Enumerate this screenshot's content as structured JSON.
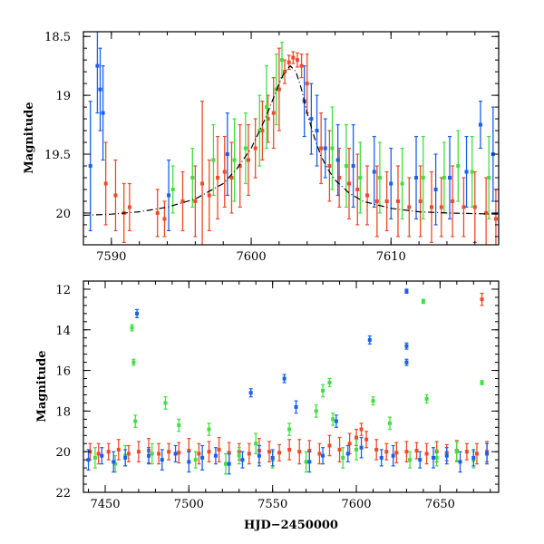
{
  "chart_data": [
    {
      "type": "scatter",
      "panel": "top",
      "xlabel": "",
      "ylabel": "Magnitude",
      "xlim": [
        7588.0,
        7617.7
      ],
      "ylim": [
        20.27,
        18.46
      ],
      "y_inverted": true,
      "xticks": [
        7590,
        7600,
        7610
      ],
      "yticks": [
        18.5,
        19,
        19.5,
        20
      ],
      "colors": {
        "red": "#f04a2a",
        "green": "#40e040",
        "blue": "#1a5ff0",
        "model": "#000000"
      },
      "series": [
        {
          "color": "red",
          "x": [
            7589.6,
            7590.3,
            7590.9,
            7591.3,
            7593.3,
            7593.8,
            7595.1,
            7596.0,
            7596.5,
            7597.0,
            7597.6,
            7598.1,
            7598.6,
            7599.2,
            7599.8,
            7600.3,
            7600.8,
            7601.2,
            7601.6,
            7602.0,
            7602.4,
            7602.7,
            7603.0,
            7603.3,
            7603.6,
            7604.0,
            7605.0,
            7605.6,
            7606.3,
            7607.0,
            7607.6,
            7608.3,
            7609.0,
            7609.7,
            7610.5,
            7611.3,
            7612.1,
            7612.9,
            7613.6,
            7614.4,
            7615.2,
            7616.0,
            7616.8,
            7617.5
          ],
          "y": [
            19.75,
            19.85,
            20.0,
            19.95,
            20.0,
            20.05,
            19.9,
            19.9,
            19.75,
            19.85,
            19.7,
            19.65,
            19.7,
            19.6,
            19.55,
            19.45,
            19.3,
            19.2,
            19.15,
            18.95,
            18.8,
            18.72,
            18.68,
            18.7,
            18.75,
            18.9,
            19.45,
            19.6,
            19.7,
            19.75,
            19.8,
            19.85,
            19.9,
            19.9,
            19.9,
            19.95,
            19.9,
            19.95,
            19.95,
            19.9,
            19.95,
            19.95,
            20.0,
            20.05
          ],
          "yerr": [
            0.35,
            0.3,
            0.25,
            0.2,
            0.2,
            0.15,
            0.25,
            0.3,
            0.7,
            0.3,
            0.35,
            0.3,
            0.3,
            0.35,
            0.3,
            0.25,
            0.25,
            0.2,
            0.3,
            0.35,
            0.1,
            0.06,
            0.05,
            0.06,
            0.1,
            0.25,
            0.3,
            0.3,
            0.25,
            0.3,
            0.3,
            0.25,
            0.3,
            0.25,
            0.3,
            0.25,
            0.3,
            0.3,
            0.25,
            0.3,
            0.25,
            0.3,
            0.3,
            0.25
          ]
        },
        {
          "color": "green",
          "x": [
            7594.4,
            7595.8,
            7597.3,
            7598.8,
            7599.6,
            7600.6,
            7601.1,
            7601.8,
            7602.2,
            7605.8,
            7606.8,
            7607.8,
            7609.2,
            7610.8,
            7612.3,
            7613.8,
            7614.8,
            7615.8,
            7617.0
          ],
          "y": [
            19.8,
            19.7,
            19.55,
            19.55,
            19.45,
            19.3,
            19.1,
            18.95,
            18.7,
            19.45,
            19.6,
            19.7,
            19.7,
            19.75,
            19.7,
            19.7,
            19.6,
            19.65,
            19.7
          ],
          "yerr": [
            0.2,
            0.25,
            0.3,
            0.35,
            0.3,
            0.3,
            0.35,
            0.3,
            0.15,
            0.35,
            0.35,
            0.3,
            0.3,
            0.3,
            0.35,
            0.3,
            0.3,
            0.3,
            0.35
          ]
        },
        {
          "color": "blue",
          "x": [
            7588.5,
            7589.0,
            7589.2,
            7589.4,
            7594.1,
            7598.3,
            7603.8,
            7604.3,
            7604.7,
            7605.3,
            7606.2,
            7607.3,
            7608.8,
            7610.0,
            7611.8,
            7613.2,
            7614.2,
            7615.4,
            7616.4,
            7617.3
          ],
          "y": [
            19.6,
            18.75,
            18.95,
            19.15,
            19.85,
            19.5,
            19.05,
            19.2,
            19.3,
            19.45,
            19.55,
            19.6,
            19.65,
            19.75,
            19.7,
            19.8,
            19.7,
            19.65,
            19.25,
            19.5
          ],
          "yerr": [
            0.55,
            0.4,
            0.35,
            0.4,
            0.3,
            0.35,
            0.3,
            0.3,
            0.3,
            0.25,
            0.3,
            0.35,
            0.3,
            0.3,
            0.35,
            0.3,
            0.35,
            0.3,
            0.2,
            0.4
          ]
        },
        {
          "color": "model",
          "style": "line",
          "x": [
            7588.0,
            7590.0,
            7592.0,
            7594.0,
            7596.0,
            7598.0,
            7599.0,
            7600.0,
            7601.0,
            7601.5,
            7602.0,
            7602.4,
            7602.8,
            7603.2,
            7603.6,
            7604.0,
            7604.5,
            7605.0,
            7605.5,
            7606.0,
            7607.0,
            7608.0,
            7610.0,
            7612.0,
            7614.0,
            7617.7
          ],
          "y": [
            20.02,
            20.01,
            19.99,
            19.95,
            19.88,
            19.75,
            19.62,
            19.45,
            19.2,
            19.05,
            18.9,
            18.8,
            18.75,
            18.8,
            18.95,
            19.15,
            19.35,
            19.52,
            19.63,
            19.72,
            19.83,
            19.9,
            19.96,
            19.99,
            20.0,
            20.01
          ]
        }
      ]
    },
    {
      "type": "scatter",
      "panel": "bottom",
      "xlabel": "HJD−2450000",
      "ylabel": "Magnitude",
      "xlim": [
        7437,
        7685
      ],
      "ylim": [
        22.0,
        11.6
      ],
      "y_inverted": true,
      "xticks": [
        7450,
        7500,
        7550,
        7600,
        7650
      ],
      "yticks": [
        12,
        14,
        16,
        18,
        20,
        22
      ],
      "colors": {
        "red": "#f04a2a",
        "green": "#40e040",
        "blue": "#1a5ff0"
      },
      "series": [
        {
          "color": "red",
          "x": [
            7441,
            7446,
            7452,
            7458,
            7464,
            7470,
            7476,
            7482,
            7488,
            7494,
            7500,
            7506,
            7512,
            7518,
            7524,
            7530,
            7536,
            7542,
            7548,
            7554,
            7560,
            7566,
            7572,
            7578,
            7584,
            7590,
            7596,
            7600,
            7603,
            7606,
            7612,
            7618,
            7624,
            7630,
            7636,
            7642,
            7648,
            7654,
            7660,
            7666,
            7672,
            7678,
            7675
          ],
          "y": [
            20.0,
            20.1,
            20.0,
            19.9,
            20.1,
            20.0,
            19.95,
            20.1,
            20.0,
            20.05,
            19.95,
            20.1,
            20.0,
            19.9,
            20.05,
            20.0,
            20.1,
            19.95,
            20.0,
            20.05,
            19.9,
            20.0,
            19.95,
            20.1,
            19.7,
            19.9,
            19.6,
            19.3,
            18.9,
            19.4,
            19.9,
            20.0,
            20.05,
            20.0,
            19.95,
            20.1,
            20.0,
            20.05,
            19.95,
            20.0,
            20.1,
            20.0,
            12.5
          ],
          "yerr": [
            0.4,
            0.5,
            0.4,
            0.5,
            0.4,
            0.5,
            0.6,
            0.5,
            0.4,
            0.5,
            0.6,
            0.5,
            0.5,
            0.6,
            0.5,
            0.4,
            0.5,
            0.6,
            0.5,
            0.4,
            0.5,
            0.6,
            0.5,
            0.5,
            0.5,
            0.6,
            0.5,
            0.4,
            0.3,
            0.4,
            0.5,
            0.4,
            0.5,
            0.5,
            0.4,
            0.5,
            0.5,
            0.4,
            0.5,
            0.4,
            0.5,
            0.5,
            0.3
          ]
        },
        {
          "color": "green",
          "x": [
            7444,
            7456,
            7462,
            7466,
            7467,
            7468,
            7478,
            7486,
            7494,
            7504,
            7512,
            7522,
            7530,
            7540,
            7550,
            7560,
            7570,
            7576,
            7580,
            7584,
            7586,
            7592,
            7600,
            7610,
            7620,
            7632,
            7640,
            7642,
            7648,
            7660,
            7670,
            7675
          ],
          "y": [
            20.3,
            20.6,
            20.2,
            13.9,
            15.6,
            18.5,
            20.1,
            17.6,
            18.7,
            20.4,
            18.9,
            20.6,
            20.2,
            19.6,
            20.4,
            18.9,
            20.5,
            18.0,
            17.0,
            16.6,
            18.4,
            20.3,
            19.9,
            17.5,
            18.6,
            20.4,
            12.6,
            17.4,
            20.3,
            20.0,
            20.4,
            16.6
          ],
          "yerr": [
            0.5,
            0.4,
            0.5,
            0.15,
            0.15,
            0.3,
            0.5,
            0.3,
            0.3,
            0.4,
            0.3,
            0.5,
            0.4,
            0.5,
            0.4,
            0.3,
            0.5,
            0.3,
            0.3,
            0.2,
            0.3,
            0.5,
            0.5,
            0.2,
            0.3,
            0.4,
            0.1,
            0.2,
            0.4,
            0.5,
            0.4,
            0.1
          ]
        },
        {
          "color": "blue",
          "x": [
            7440,
            7448,
            7455,
            7462,
            7469,
            7476,
            7484,
            7492,
            7500,
            7508,
            7516,
            7524,
            7532,
            7537,
            7542,
            7550,
            7557,
            7564,
            7572,
            7580,
            7588,
            7595,
            7603,
            7608,
            7615,
            7622,
            7630,
            7630,
            7630,
            7638,
            7646,
            7654,
            7662,
            7670,
            7678
          ],
          "y": [
            20.4,
            20.2,
            20.5,
            20.3,
            13.2,
            20.2,
            20.4,
            20.1,
            20.5,
            20.3,
            20.2,
            20.6,
            20.4,
            17.1,
            20.2,
            20.3,
            16.4,
            17.8,
            20.5,
            20.2,
            18.5,
            20.1,
            19.8,
            14.5,
            20.3,
            20.2,
            12.1,
            14.8,
            15.6,
            20.4,
            20.3,
            20.2,
            20.5,
            20.3,
            20.1
          ],
          "yerr": [
            0.5,
            0.4,
            0.5,
            0.4,
            0.2,
            0.4,
            0.5,
            0.4,
            0.5,
            0.6,
            0.4,
            0.5,
            0.4,
            0.2,
            0.5,
            0.4,
            0.2,
            0.3,
            0.5,
            0.4,
            0.3,
            0.4,
            0.5,
            0.2,
            0.4,
            0.5,
            0.1,
            0.15,
            0.15,
            0.4,
            0.5,
            0.4,
            0.5,
            0.4,
            0.5
          ]
        }
      ]
    }
  ]
}
